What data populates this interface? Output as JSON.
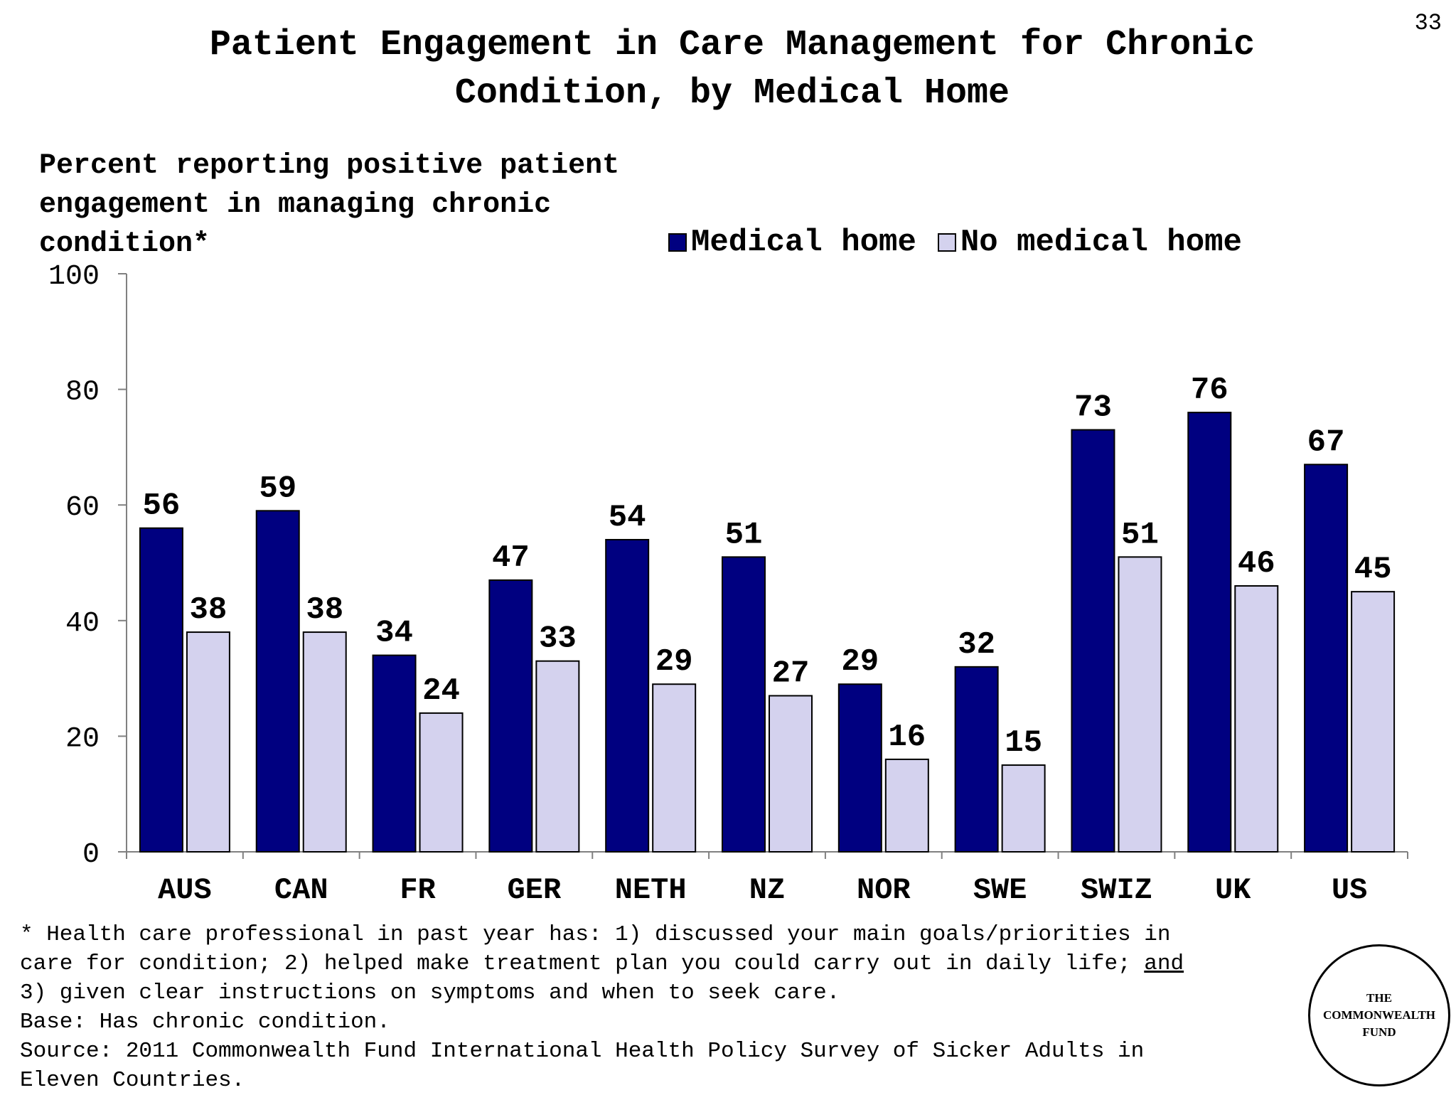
{
  "page_number": "33",
  "chart_data": {
    "type": "bar",
    "title": "Patient Engagement in Care Management for Chronic Condition, by Medical Home",
    "ylabel": "Percent reporting positive patient engagement in managing chronic condition*",
    "categories": [
      "AUS",
      "CAN",
      "FR",
      "GER",
      "NETH",
      "NZ",
      "NOR",
      "SWE",
      "SWIZ",
      "UK",
      "US"
    ],
    "series": [
      {
        "name": "Medical home",
        "color": "#000080",
        "values": [
          56,
          59,
          34,
          47,
          54,
          51,
          29,
          32,
          73,
          76,
          67
        ]
      },
      {
        "name": "No medical home",
        "color": "#d4d2ee",
        "values": [
          38,
          38,
          24,
          33,
          29,
          27,
          16,
          15,
          51,
          46,
          45
        ]
      }
    ],
    "ylim": [
      0,
      100
    ],
    "yticks": [
      0,
      20,
      40,
      60,
      80,
      100
    ],
    "legend": "top-right",
    "grid": false
  },
  "footnote": {
    "line1": "* Health care professional in past year has: 1) discussed your main goals/priorities in",
    "line2": "care for condition; 2) helped make treatment plan you could carry out in daily life; ",
    "line2_underlined": "and",
    "line3": "3) given clear instructions on symptoms and when to seek care.",
    "base": "Base: Has chronic condition.",
    "source": "Source: 2011 Commonwealth Fund International Health Policy Survey of Sicker Adults in",
    "source_cont": "Eleven Countries."
  },
  "logo": {
    "line1": "THE",
    "line2": "COMMONWEALTH",
    "line3": "FUND"
  }
}
